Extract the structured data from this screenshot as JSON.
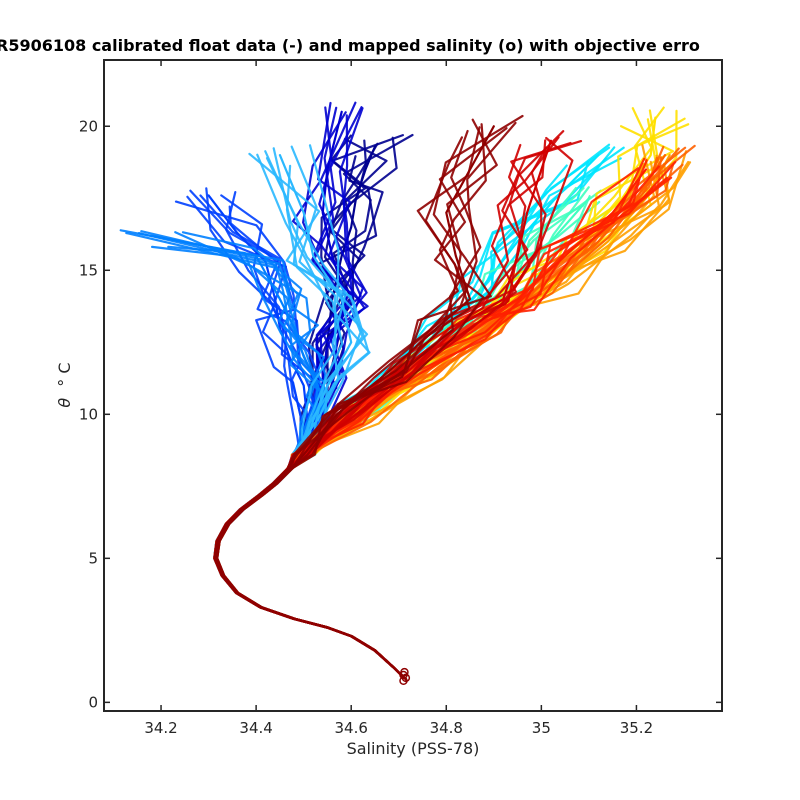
{
  "chart_data": {
    "type": "line",
    "title": "R5906108 calibrated float data (-) and mapped salinity (o) with objective erro",
    "xlabel": "Salinity (PSS-78)",
    "ylabel_symbol": "θ",
    "ylabel_unit": "° C",
    "xlim": [
      34.08,
      35.38
    ],
    "ylim": [
      -0.3,
      22.3
    ],
    "xticks": [
      34.2,
      34.4,
      34.6,
      34.8,
      35,
      35.2
    ],
    "xtick_labels": [
      "34.2",
      "34.4",
      "34.6",
      "34.8",
      "35",
      "35.2"
    ],
    "yticks": [
      0,
      5,
      10,
      15,
      20
    ],
    "ytick_labels": [
      "0",
      "5",
      "10",
      "15",
      "20"
    ],
    "grid": false,
    "legend": "none",
    "colormap": "jet",
    "colors": [
      "#00008f",
      "#0000d0",
      "#0040ff",
      "#0080ff",
      "#2ab8ff",
      "#00e5ff",
      "#40ffbf",
      "#ffe000",
      "#ffa000",
      "#ff6000",
      "#ff2000",
      "#d00000",
      "#8f0000"
    ],
    "shared_deep": {
      "theta": [
        0.8,
        1.2,
        1.8,
        2.3,
        2.6,
        2.9,
        3.3,
        3.8,
        4.4,
        5.0,
        5.6,
        6.2,
        6.7,
        7.2,
        7.6,
        8.1,
        8.6
      ],
      "salinity": [
        34.715,
        34.69,
        34.65,
        34.6,
        34.55,
        34.48,
        34.41,
        34.36,
        34.33,
        34.315,
        34.32,
        34.34,
        34.37,
        34.41,
        34.44,
        34.47,
        34.5
      ]
    },
    "series": [
      {
        "color": "#00008f",
        "theta": [
          8.6,
          9.5,
          11,
          12.5,
          14,
          15.5,
          16.5,
          17.5,
          18.5,
          19.3
        ],
        "salinity": [
          34.5,
          34.52,
          34.54,
          34.55,
          34.56,
          34.58,
          34.6,
          34.61,
          34.63,
          34.65
        ]
      },
      {
        "color": "#0000d0",
        "theta": [
          8.6,
          9.5,
          11,
          12.5,
          14,
          15.5,
          17,
          18.5,
          20.5
        ],
        "salinity": [
          34.5,
          34.53,
          34.56,
          34.57,
          34.59,
          34.56,
          34.54,
          34.55,
          34.58
        ]
      },
      {
        "color": "#0040ff",
        "theta": [
          8.6,
          9.5,
          11,
          12,
          13,
          14,
          15.3,
          16.3,
          17.6
        ],
        "salinity": [
          34.5,
          34.51,
          34.5,
          34.47,
          34.45,
          34.44,
          34.42,
          34.36,
          34.3
        ]
      },
      {
        "color": "#0080ff",
        "theta": [
          8.6,
          9.8,
          11,
          12,
          13,
          14,
          15.5,
          16.2
        ],
        "salinity": [
          34.5,
          34.52,
          34.53,
          34.5,
          34.48,
          34.45,
          34.4,
          34.18
        ]
      },
      {
        "color": "#2ab8ff",
        "theta": [
          8.6,
          9.8,
          11,
          12.5,
          14,
          15.5,
          17,
          19
        ],
        "salinity": [
          34.5,
          34.52,
          34.55,
          34.6,
          34.58,
          34.52,
          34.5,
          34.45
        ]
      },
      {
        "color": "#00e5ff",
        "theta": [
          8.6,
          10,
          11.5,
          13,
          14.5,
          16,
          17.5,
          19
        ],
        "salinity": [
          34.5,
          34.6,
          34.7,
          34.8,
          34.88,
          34.95,
          35.03,
          35.12
        ]
      },
      {
        "color": "#40ffbf",
        "theta": [
          8.6,
          10,
          11.5,
          13,
          14.5,
          16,
          17.5
        ],
        "salinity": [
          34.5,
          34.62,
          34.72,
          34.83,
          34.93,
          35.02,
          35.1
        ]
      },
      {
        "color": "#ffe000",
        "theta": [
          8.6,
          10,
          11.5,
          13,
          14.5,
          16,
          17.5,
          19,
          20.3
        ],
        "salinity": [
          34.5,
          34.62,
          34.74,
          34.86,
          34.98,
          35.08,
          35.17,
          35.23,
          35.24
        ]
      },
      {
        "color": "#ffa000",
        "theta": [
          8.6,
          10,
          11.5,
          13,
          14.5,
          16,
          17.5,
          19
        ],
        "salinity": [
          34.5,
          34.63,
          34.76,
          34.9,
          35.03,
          35.14,
          35.22,
          35.27
        ]
      },
      {
        "color": "#ff6000",
        "theta": [
          8.6,
          10,
          11.5,
          13,
          14.5,
          16,
          17.5,
          19
        ],
        "salinity": [
          34.5,
          34.62,
          34.75,
          34.88,
          35.0,
          35.12,
          35.2,
          35.26
        ]
      },
      {
        "color": "#ff2000",
        "theta": [
          8.6,
          10,
          11.5,
          13,
          14,
          15.5,
          17,
          18.5
        ],
        "salinity": [
          34.5,
          34.6,
          34.72,
          34.85,
          34.95,
          35.05,
          35.15,
          35.22
        ]
      },
      {
        "color": "#d00000",
        "theta": [
          8.6,
          10,
          11.5,
          13,
          14,
          15.5,
          17,
          18.5,
          19.5
        ],
        "salinity": [
          34.5,
          34.58,
          34.7,
          34.82,
          34.92,
          34.95,
          34.97,
          35.0,
          35.02
        ]
      },
      {
        "color": "#8f0000",
        "theta": [
          8.6,
          10,
          11.5,
          13,
          14,
          15.5,
          17,
          18.5,
          20
        ],
        "salinity": [
          34.5,
          34.57,
          34.68,
          34.78,
          34.85,
          34.82,
          34.8,
          34.85,
          34.9
        ]
      }
    ],
    "mapped_salinity": {
      "marker": "circle",
      "theta": [
        0.75,
        0.85,
        0.95,
        1.05
      ],
      "salinity": [
        34.71,
        34.715,
        34.71,
        34.712
      ],
      "color": "#8f0000"
    }
  }
}
